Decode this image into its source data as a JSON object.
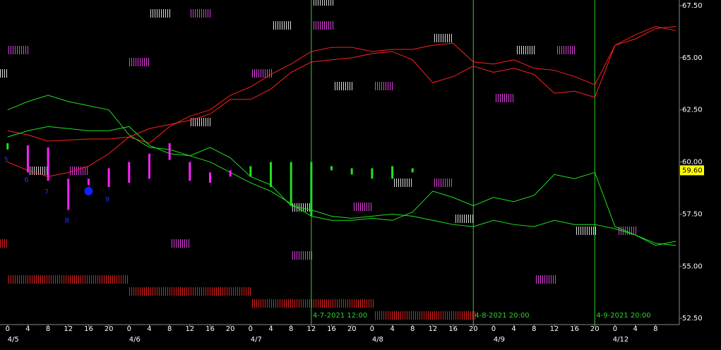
{
  "chart_data": {
    "type": "line",
    "xlim": [
      -1.5,
      132.7
    ],
    "ylim": [
      52.2,
      67.77
    ],
    "yticks": [
      {
        "value": 52.5,
        "label": "52.50"
      },
      {
        "value": 55,
        "label": "55.00"
      },
      {
        "value": 57.5,
        "label": "57.50"
      },
      {
        "value": 60,
        "label": "60.00"
      },
      {
        "value": 62.5,
        "label": "62.50"
      },
      {
        "value": 65,
        "label": "65.00"
      },
      {
        "value": 67.5,
        "label": "67.50"
      }
    ],
    "xticks": [
      {
        "value": 0,
        "label": "0"
      },
      {
        "value": 4,
        "label": "4"
      },
      {
        "value": 8,
        "label": "8"
      },
      {
        "value": 12,
        "label": "12"
      },
      {
        "value": 16,
        "label": "16"
      },
      {
        "value": 20,
        "label": "20"
      },
      {
        "value": 24,
        "label": "0"
      },
      {
        "value": 28,
        "label": "4"
      },
      {
        "value": 32,
        "label": "8"
      },
      {
        "value": 36,
        "label": "12"
      },
      {
        "value": 40,
        "label": "16"
      },
      {
        "value": 44,
        "label": "20"
      },
      {
        "value": 48,
        "label": "0"
      },
      {
        "value": 52,
        "label": "4"
      },
      {
        "value": 56,
        "label": "8"
      },
      {
        "value": 60,
        "label": "12"
      },
      {
        "value": 64,
        "label": "16"
      },
      {
        "value": 68,
        "label": "20"
      },
      {
        "value": 72,
        "label": "0"
      },
      {
        "value": 76,
        "label": "4"
      },
      {
        "value": 80,
        "label": "8"
      },
      {
        "value": 84,
        "label": "12"
      },
      {
        "value": 88,
        "label": "16"
      },
      {
        "value": 92,
        "label": "20"
      },
      {
        "value": 96,
        "label": "0"
      },
      {
        "value": 100,
        "label": "4"
      },
      {
        "value": 104,
        "label": "8"
      },
      {
        "value": 108,
        "label": "12"
      },
      {
        "value": 112,
        "label": "16"
      },
      {
        "value": 116,
        "label": "20"
      },
      {
        "value": 120,
        "label": "0"
      },
      {
        "value": 124,
        "label": "4"
      },
      {
        "value": 128,
        "label": "8"
      }
    ],
    "day_labels": [
      {
        "value": 0,
        "label": "4/5"
      },
      {
        "value": 24,
        "label": "4/6"
      },
      {
        "value": 48,
        "label": "4/7"
      },
      {
        "value": 72,
        "label": "4/8"
      },
      {
        "value": 96,
        "label": "4/9"
      },
      {
        "value": 120,
        "label": "4/12"
      }
    ],
    "x": [
      0,
      4,
      8,
      12,
      16,
      20,
      24,
      28,
      32,
      36,
      40,
      44,
      48,
      52,
      56,
      60,
      64,
      68,
      72,
      76,
      80,
      84,
      88,
      92,
      96,
      100,
      104,
      108,
      112,
      116,
      120,
      124,
      128,
      132
    ],
    "series": [
      {
        "color": "#ff2020",
        "values": [
          61.5,
          61.3,
          61.0,
          61.05,
          61.1,
          61.1,
          61.2,
          60.9,
          61.7,
          62.2,
          62.5,
          63.2,
          63.6,
          64.2,
          64.7,
          65.3,
          65.5,
          65.5,
          65.3,
          65.4,
          65.4,
          65.6,
          65.7,
          64.8,
          64.7,
          64.9,
          64.5,
          64.4,
          64.1,
          63.7,
          65.6,
          66.1,
          66.5,
          66.3
        ]
      },
      {
        "color": "#ff2020",
        "values": [
          60.0,
          59.6,
          59.3,
          59.5,
          59.8,
          60.4,
          61.2,
          61.6,
          61.8,
          62.0,
          62.3,
          63.0,
          63.0,
          63.5,
          64.3,
          64.8,
          64.9,
          65.0,
          65.2,
          65.3,
          64.9,
          63.8,
          64.1,
          64.6,
          64.3,
          64.5,
          64.2,
          63.3,
          63.4,
          63.1,
          65.6,
          65.9,
          66.4,
          66.5
        ]
      },
      {
        "color": "#20e020",
        "values": [
          62.5,
          62.9,
          63.2,
          62.9,
          62.7,
          62.5,
          61.3,
          60.7,
          60.6,
          60.3,
          60.0,
          59.5,
          59.0,
          58.6,
          58.0,
          57.4,
          57.2,
          57.2,
          57.3,
          57.2,
          57.6,
          58.6,
          58.3,
          57.9,
          58.3,
          58.1,
          58.4,
          59.4,
          59.2,
          59.5,
          56.9,
          56.5,
          56.0,
          56.2
        ]
      },
      {
        "color": "#20e020",
        "values": [
          61.2,
          61.5,
          61.7,
          61.6,
          61.5,
          61.5,
          61.7,
          60.8,
          60.4,
          60.3,
          60.7,
          60.2,
          59.3,
          58.9,
          57.9,
          57.7,
          57.4,
          57.3,
          57.4,
          57.5,
          57.4,
          57.2,
          57.0,
          56.9,
          57.2,
          57.0,
          56.9,
          57.2,
          57.0,
          57.0,
          56.8,
          56.5,
          56.1,
          56.0
        ]
      }
    ],
    "bars": {
      "x": [
        0,
        4,
        8,
        12,
        16,
        20,
        24,
        28,
        32,
        36,
        40,
        44,
        48,
        52,
        56,
        60,
        64,
        68,
        72,
        76,
        80
      ],
      "high": [
        60.9,
        60.8,
        60.7,
        59.2,
        59.2,
        59.7,
        60.0,
        60.4,
        60.9,
        60.0,
        59.5,
        59.6,
        59.8,
        60.0,
        60.0,
        60.0,
        59.8,
        59.7,
        59.7,
        59.8,
        59.7
      ],
      "low": [
        60.6,
        59.5,
        59.1,
        57.7,
        58.9,
        58.8,
        59.0,
        59.2,
        60.1,
        59.1,
        59.0,
        59.3,
        59.3,
        58.8,
        57.9,
        57.4,
        59.6,
        59.4,
        59.2,
        59.2,
        59.5
      ],
      "colors": [
        "#20e020",
        "#ff20ff",
        "#ff20ff",
        "#ff20ff",
        "#ff20ff",
        "#ff20ff",
        "#ff20ff",
        "#ff20ff",
        "#ff20ff",
        "#ff20ff",
        "#ff20ff",
        "#ff20ff",
        "#20e020",
        "#20e020",
        "#20e020",
        "#20e020",
        "#20e020",
        "#20e020",
        "#20e020",
        "#20e020",
        "#20e020"
      ]
    },
    "markers": [
      {
        "x": 0,
        "y": 60.1,
        "label": "5"
      },
      {
        "x": 4,
        "y": 59.14,
        "label": "6"
      },
      {
        "x": 8,
        "y": 58.57,
        "label": "7"
      },
      {
        "x": 12,
        "y": 57.19,
        "label": "8"
      },
      {
        "x": 20,
        "y": 58.2,
        "label": "9"
      }
    ],
    "marker_color": "#2030ff",
    "dot": {
      "x": 16,
      "y": 58.6,
      "color": "#1020ff"
    },
    "vlines": [
      {
        "x": 60,
        "label": "4-7-2021 12:00"
      },
      {
        "x": 92,
        "label": "4-8-2021 20:00"
      },
      {
        "x": 116,
        "label": "4-9-2021 20:00"
      }
    ],
    "vline_color": "#30d030",
    "last_price": {
      "value": 59.6,
      "label": "59.60"
    }
  }
}
